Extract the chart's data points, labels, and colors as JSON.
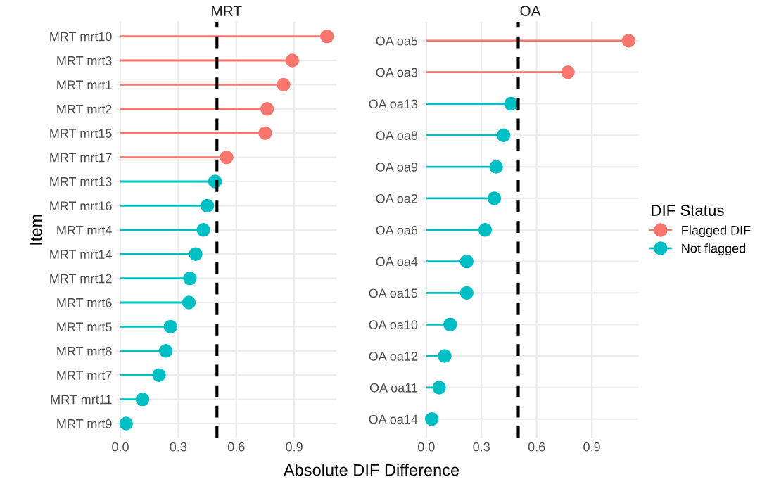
{
  "chart_data": [
    {
      "type": "lollipop",
      "orientation": "horizontal",
      "title": "MRT",
      "ylabel": "Item",
      "xlabel": "Absolute DIF Difference",
      "categories": [
        "MRT mrt10",
        "MRT mrt3",
        "MRT mrt1",
        "MRT mrt2",
        "MRT mrt15",
        "MRT mrt17",
        "MRT mrt13",
        "MRT mrt16",
        "MRT mrt4",
        "MRT mrt14",
        "MRT mrt12",
        "MRT mrt6",
        "MRT mrt5",
        "MRT mrt8",
        "MRT mrt7",
        "MRT mrt11",
        "MRT mrt9"
      ],
      "series": [
        {
          "color": "#f8766d",
          "values": [
            1.07,
            0.89,
            0.845,
            0.76,
            0.75,
            0.55,
            null,
            null,
            null,
            null,
            null,
            null,
            null,
            null,
            null,
            null,
            null
          ]
        },
        {
          "color": "#00bfc4",
          "values": [
            null,
            null,
            null,
            null,
            null,
            null,
            0.49,
            0.45,
            0.43,
            0.39,
            0.36,
            0.355,
            0.26,
            0.235,
            0.2,
            0.115,
            0.03
          ]
        }
      ],
      "xlim": [
        -0.022,
        1.12
      ],
      "xticks": [
        {
          "value": 0,
          "label": "0.0"
        },
        0.3,
        0.6,
        0.9
      ],
      "ref_lines": [
        {
          "axis": "x",
          "value": 0.5,
          "color": "#000000",
          "line_style": "dashed"
        }
      ],
      "grid": true,
      "marker": "circle"
    },
    {
      "type": "lollipop",
      "orientation": "horizontal",
      "title": "OA",
      "legend_title": "DIF Status",
      "categories": [
        "OA oa5",
        "OA oa3",
        "OA oa13",
        "OA oa8",
        "OA oa9",
        "OA oa2",
        "OA oa6",
        "OA oa4",
        "OA oa15",
        "OA oa10",
        "OA oa12",
        "OA oa11",
        "OA oa14"
      ],
      "series": [
        {
          "name": "Flagged DIF",
          "color": "#f8766d",
          "values": [
            1.1,
            0.77,
            null,
            null,
            null,
            null,
            null,
            null,
            null,
            null,
            null,
            null,
            null
          ]
        },
        {
          "name": "Not flagged",
          "color": "#00bfc4",
          "values": [
            null,
            null,
            0.46,
            0.42,
            0.38,
            0.37,
            0.32,
            0.22,
            0.22,
            0.13,
            0.1,
            0.07,
            0.03
          ]
        }
      ],
      "xlim": [
        -0.024,
        1.154
      ],
      "xticks": [
        {
          "value": 0,
          "label": "0.0"
        },
        0.3,
        0.6,
        0.9
      ],
      "ref_lines": [
        {
          "axis": "x",
          "value": 0.5,
          "color": "#000000",
          "line_style": "dashed"
        }
      ],
      "grid": true,
      "marker": "circle",
      "legend": "right"
    }
  ]
}
